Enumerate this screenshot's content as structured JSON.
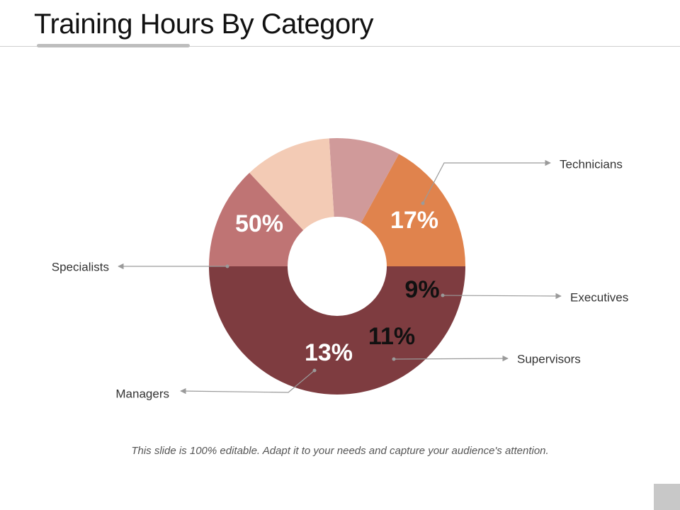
{
  "title": "Training Hours By Category",
  "caption": "This slide is 100% editable. Adapt it to your needs and capture your audience's attention.",
  "chart_data": {
    "type": "pie",
    "donut": true,
    "title": "Training Hours By Category",
    "unit": "%",
    "slices": [
      {
        "label": "Technicians",
        "value": 17,
        "value_label": "17%",
        "color": "#e0834d",
        "text_color": "#ffffff"
      },
      {
        "label": "Executives",
        "value": 9,
        "value_label": "9%",
        "color": "#d09a9a",
        "text_color": "#111111"
      },
      {
        "label": "Supervisors",
        "value": 11,
        "value_label": "11%",
        "color": "#f3cbb5",
        "text_color": "#111111"
      },
      {
        "label": "Managers",
        "value": 13,
        "value_label": "13%",
        "color": "#bf7474",
        "text_color": "#ffffff"
      },
      {
        "label": "Specialists",
        "value": 50,
        "value_label": "50%",
        "color": "#7e3c40",
        "text_color": "#ffffff"
      }
    ]
  }
}
